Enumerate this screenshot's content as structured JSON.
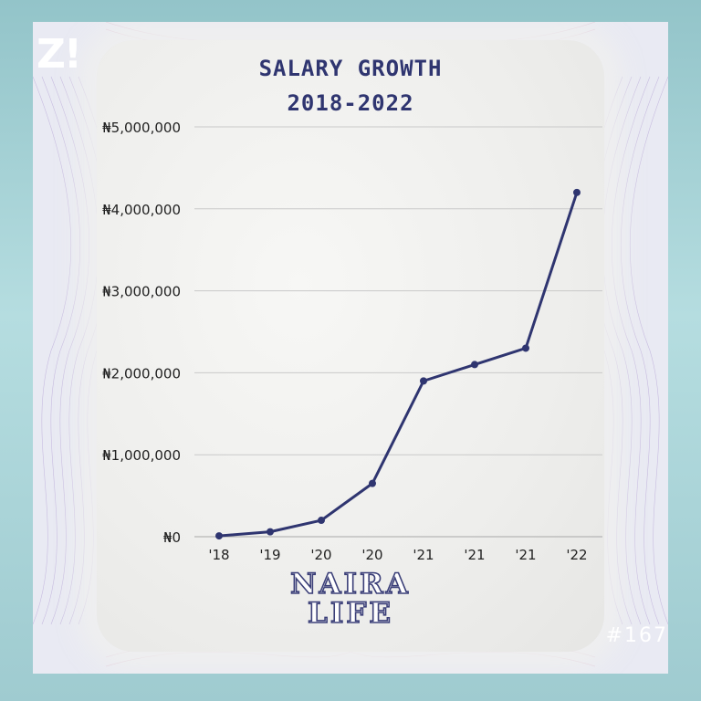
{
  "logo": "Z!",
  "title_line1": "SALARY GROWTH",
  "title_line2": "2018-2022",
  "brand_line1": "NAIRA",
  "brand_line2": "LIFE",
  "issue": "#167",
  "colors": {
    "line": "#2f3570",
    "background": "#a9d3d7",
    "grid": "#c9c9c9"
  },
  "chart_data": {
    "type": "line",
    "categories": [
      "'18",
      "'19",
      "'20",
      "'20",
      "'21",
      "'21",
      "'21",
      "'22"
    ],
    "series": [
      {
        "values": [
          10000,
          60000,
          200000,
          650000,
          1900000,
          2100000,
          2300000,
          4200000
        ]
      }
    ],
    "y_ticks": [
      "₦0",
      "₦1,000,000",
      "₦2,000,000",
      "₦3,000,000",
      "₦4,000,000",
      "₦5,000,000"
    ],
    "ylim": [
      0,
      5000000
    ],
    "grid": true,
    "xlabel": "",
    "ylabel": ""
  }
}
